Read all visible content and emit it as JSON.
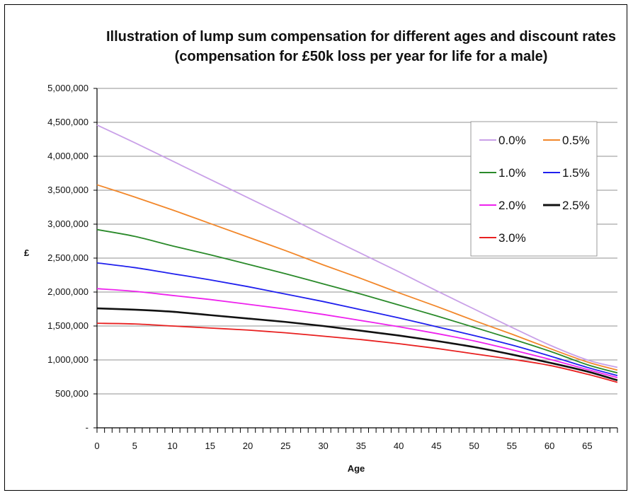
{
  "chart_data": {
    "type": "line",
    "title": "Illustration of lump sum compensation for different ages and discount rates (compensation for £50k loss per year for life for a male)",
    "xlabel": "Age",
    "ylabel": "£",
    "x_ticks": [
      "0",
      "5",
      "10",
      "15",
      "20",
      "25",
      "30",
      "35",
      "40",
      "45",
      "50",
      "55",
      "60",
      "65"
    ],
    "y_ticks": [
      "-",
      "500,000",
      "1,000,000",
      "1,500,000",
      "2,000,000",
      "2,500,000",
      "3,000,000",
      "3,500,000",
      "4,000,000",
      "4,500,000",
      "5,000,000"
    ],
    "xlim": [
      0,
      69
    ],
    "ylim": [
      0,
      5000000
    ],
    "grid": "horizontal",
    "legend_position": "top-right",
    "x": [
      0,
      5,
      10,
      15,
      20,
      25,
      30,
      35,
      40,
      45,
      50,
      55,
      60,
      65,
      69
    ],
    "series": [
      {
        "name": "0.0%",
        "color": "#c9a0e8",
        "values": [
          4460000,
          4200000,
          3930000,
          3660000,
          3390000,
          3120000,
          2840000,
          2570000,
          2300000,
          2020000,
          1750000,
          1480000,
          1220000,
          1000000,
          890000
        ]
      },
      {
        "name": "0.5%",
        "color": "#f2872a",
        "values": [
          3580000,
          3400000,
          3210000,
          3010000,
          2810000,
          2610000,
          2400000,
          2200000,
          1990000,
          1790000,
          1580000,
          1380000,
          1170000,
          970000,
          850000
        ]
      },
      {
        "name": "1.0%",
        "color": "#2a8a2a",
        "values": [
          2920000,
          2820000,
          2680000,
          2550000,
          2410000,
          2270000,
          2120000,
          1970000,
          1810000,
          1650000,
          1480000,
          1310000,
          1130000,
          930000,
          810000
        ]
      },
      {
        "name": "1.5%",
        "color": "#2020ee",
        "values": [
          2430000,
          2360000,
          2270000,
          2180000,
          2080000,
          1970000,
          1860000,
          1740000,
          1620000,
          1490000,
          1360000,
          1220000,
          1060000,
          890000,
          770000
        ]
      },
      {
        "name": "2.0%",
        "color": "#ee22ee",
        "values": [
          2050000,
          2010000,
          1950000,
          1890000,
          1820000,
          1750000,
          1670000,
          1580000,
          1490000,
          1390000,
          1280000,
          1150000,
          1010000,
          860000,
          740000
        ]
      },
      {
        "name": "2.5%",
        "color": "#111111",
        "values": [
          1760000,
          1740000,
          1710000,
          1660000,
          1610000,
          1560000,
          1500000,
          1430000,
          1360000,
          1280000,
          1190000,
          1080000,
          960000,
          830000,
          700000
        ]
      },
      {
        "name": "3.0%",
        "color": "#e82020",
        "values": [
          1540000,
          1530000,
          1500000,
          1470000,
          1440000,
          1400000,
          1350000,
          1300000,
          1240000,
          1170000,
          1090000,
          1010000,
          920000,
          790000,
          670000
        ]
      }
    ]
  }
}
